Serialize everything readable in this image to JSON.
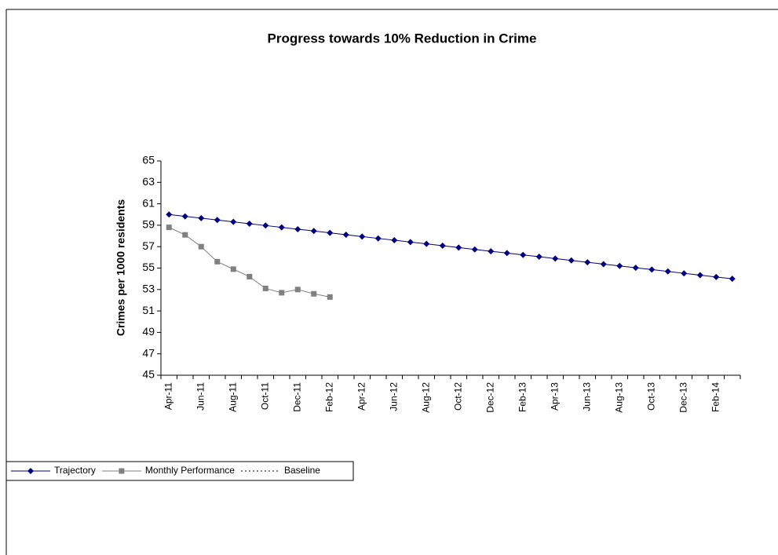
{
  "chart_data": {
    "type": "line",
    "title": "Progress towards 10% Reduction in Crime",
    "y_label": "Crimes per 1000 residents",
    "categories": [
      "Apr-11",
      null,
      "Jun-11",
      null,
      "Aug-11",
      null,
      "Oct-11",
      null,
      "Dec-11",
      null,
      "Feb-12",
      null,
      "Apr-12",
      null,
      "Jun-12",
      null,
      "Aug-12",
      null,
      "Oct-12",
      null,
      "Dec-12",
      null,
      "Feb-13",
      null,
      "Apr-13",
      null,
      "Jun-13",
      null,
      "Aug-13",
      null,
      "Oct-13",
      null,
      "Dec-13",
      null,
      "Feb-14",
      null
    ],
    "series": [
      {
        "name": "Trajectory",
        "color": "#000080",
        "marker": "diamond",
        "line_style": "solid",
        "values": [
          60.0,
          59.83,
          59.66,
          59.49,
          59.31,
          59.14,
          58.97,
          58.8,
          58.63,
          58.46,
          58.29,
          58.11,
          57.94,
          57.77,
          57.6,
          57.43,
          57.26,
          57.09,
          56.91,
          56.74,
          56.57,
          56.4,
          56.23,
          56.06,
          55.89,
          55.71,
          55.54,
          55.37,
          55.2,
          55.03,
          54.86,
          54.69,
          54.51,
          54.34,
          54.17,
          54.0
        ]
      },
      {
        "name": "Monthly Performance",
        "color": "#808080",
        "marker": "square",
        "line_style": "solid",
        "values": [
          58.8,
          58.1,
          57.0,
          55.6,
          54.9,
          54.2,
          53.1,
          52.7,
          53.0,
          52.6,
          52.3,
          null,
          null,
          null,
          null,
          null,
          null,
          null,
          null,
          null,
          null,
          null,
          null,
          null,
          null,
          null,
          null,
          null,
          null,
          null,
          null,
          null,
          null,
          null,
          null,
          null
        ]
      },
      {
        "name": "Baseline",
        "color": "#000000",
        "marker": null,
        "line_style": "dotted",
        "values": [
          null,
          null,
          null,
          null,
          null,
          null,
          null,
          null,
          null,
          null,
          null,
          null,
          null,
          null,
          null,
          null,
          null,
          null,
          null,
          null,
          null,
          null,
          null,
          null,
          null,
          null,
          null,
          null,
          null,
          null,
          null,
          null,
          null,
          null,
          null,
          null
        ]
      }
    ],
    "ylim": [
      45,
      65
    ],
    "yticks": [
      45,
      47,
      49,
      51,
      53,
      55,
      57,
      59,
      61,
      63,
      65
    ],
    "grid": false,
    "legend": "bottom-left"
  }
}
